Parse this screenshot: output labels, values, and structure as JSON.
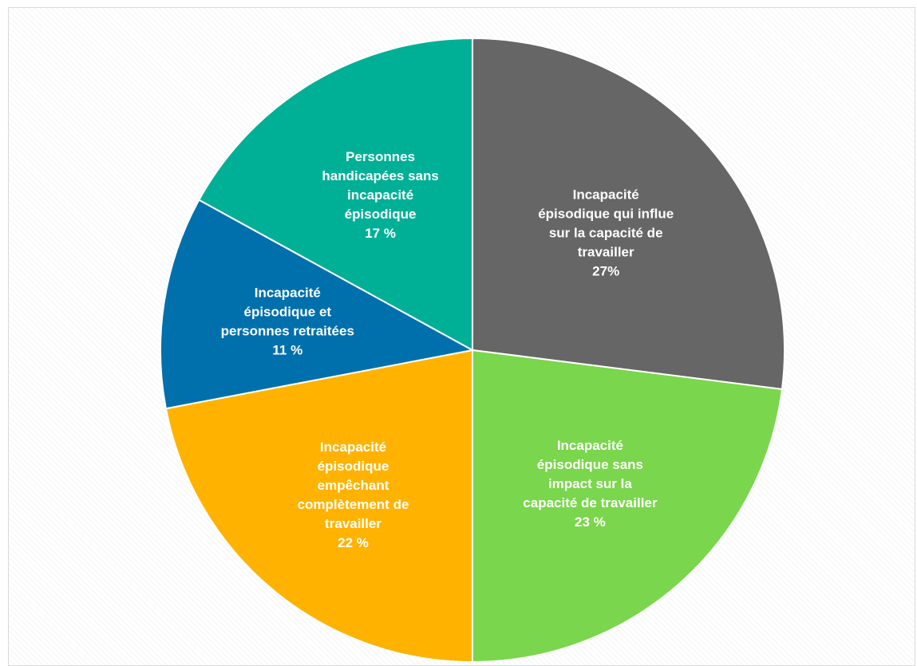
{
  "chart_data": {
    "type": "pie",
    "title": "",
    "start_angle_deg": 0,
    "direction": "clockwise",
    "slices": [
      {
        "name": "Incapacité épisodique qui influe sur la capacité de travailler",
        "label_lines": [
          "Incapacité",
          "épisodique qui influe",
          "sur la capacité de",
          "travailler"
        ],
        "value_label": "27%",
        "value": 27,
        "color": "#666666"
      },
      {
        "name": "Incapacité épisodique sans impact sur la capacité de travailler",
        "label_lines": [
          "Incapacité",
          "épisodique sans",
          "impact sur la",
          "capacité de travailler"
        ],
        "value_label": "23 %",
        "value": 23,
        "color": "#7ad64c"
      },
      {
        "name": "Incapacité épisodique empêchant complètement de travailler",
        "label_lines": [
          "Incapacité",
          "épisodique",
          "empêchant",
          "complètement de",
          "travailler"
        ],
        "value_label": "22 %",
        "value": 22,
        "color": "#ffb300"
      },
      {
        "name": "Incapacité épisodique et personnes retraitées",
        "label_lines": [
          "Incapacité",
          "épisodique et",
          "personnes retraitées"
        ],
        "value_label": "11 %",
        "value": 11,
        "color": "#0070ad"
      },
      {
        "name": "Personnes handicapées sans incapacité épisodique",
        "label_lines": [
          "Personnes",
          "handicapées sans",
          "incapacité",
          "épisodique"
        ],
        "value_label": "17 %",
        "value": 17,
        "color": "#00b096"
      }
    ]
  }
}
